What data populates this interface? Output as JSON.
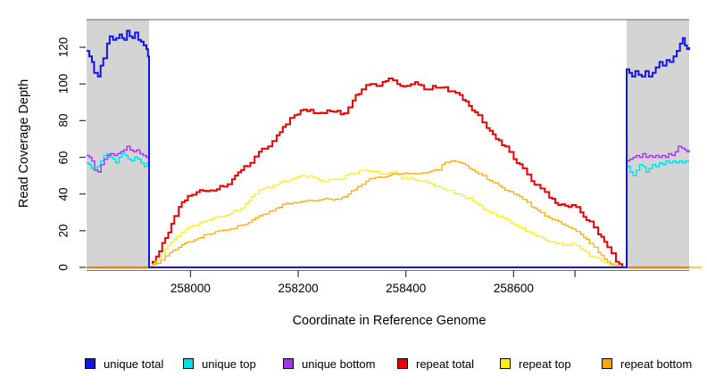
{
  "chart_data": {
    "type": "line",
    "title": "",
    "xlabel": "Coordinate in Reference Genome",
    "ylabel": "Read Coverage Depth",
    "x_range": [
      257807,
      258926
    ],
    "y_range": [
      0,
      135
    ],
    "x_ticks": [
      258000,
      258200,
      258400,
      258600
    ],
    "minor_x_ticks": [
      258714
    ],
    "y_ticks": [
      0,
      20,
      40,
      60,
      80,
      100,
      120
    ],
    "grid": false,
    "legend_position": "bottom",
    "shaded_regions": [
      {
        "start": 257807,
        "end": 257923,
        "color": "#d4d4d4"
      },
      {
        "start": 258810,
        "end": 258926,
        "color": "#d4d4d4"
      }
    ],
    "series": [
      {
        "name": "repeat total",
        "color": "#ee0000",
        "points": [
          [
            257807,
            0
          ],
          [
            257923,
            0
          ],
          [
            257936,
            6
          ],
          [
            257953,
            16
          ],
          [
            257970,
            28
          ],
          [
            257978,
            33
          ],
          [
            257995,
            39
          ],
          [
            258011,
            41
          ],
          [
            258036,
            42
          ],
          [
            258061,
            44
          ],
          [
            258077,
            48
          ],
          [
            258094,
            53
          ],
          [
            258111,
            57
          ],
          [
            258127,
            63
          ],
          [
            258144,
            66
          ],
          [
            258160,
            72
          ],
          [
            258177,
            78
          ],
          [
            258193,
            83
          ],
          [
            258210,
            86
          ],
          [
            258235,
            84
          ],
          [
            258260,
            85
          ],
          [
            258285,
            84
          ],
          [
            258301,
            91
          ],
          [
            258318,
            97
          ],
          [
            258334,
            100
          ],
          [
            258351,
            99
          ],
          [
            258368,
            103
          ],
          [
            258384,
            100
          ],
          [
            258401,
            99
          ],
          [
            258417,
            101
          ],
          [
            258434,
            97
          ],
          [
            258450,
            99
          ],
          [
            258467,
            98
          ],
          [
            258484,
            96
          ],
          [
            258500,
            94
          ],
          [
            258517,
            88
          ],
          [
            258534,
            83
          ],
          [
            258550,
            76
          ],
          [
            258567,
            70
          ],
          [
            258584,
            66
          ],
          [
            258600,
            59
          ],
          [
            258617,
            54
          ],
          [
            258633,
            47
          ],
          [
            258650,
            43
          ],
          [
            258666,
            38
          ],
          [
            258683,
            34
          ],
          [
            258708,
            34
          ],
          [
            258724,
            30
          ],
          [
            258741,
            25
          ],
          [
            258757,
            18
          ],
          [
            258774,
            11
          ],
          [
            258790,
            3
          ],
          [
            258802,
            0
          ],
          [
            258926,
            0
          ]
        ]
      },
      {
        "name": "repeat top",
        "color": "#ffee00",
        "points": [
          [
            257807,
            0
          ],
          [
            257923,
            0
          ],
          [
            257941,
            5
          ],
          [
            257958,
            12
          ],
          [
            257975,
            17
          ],
          [
            257991,
            21
          ],
          [
            258011,
            23
          ],
          [
            258036,
            26
          ],
          [
            258061,
            28
          ],
          [
            258086,
            31
          ],
          [
            258102,
            35
          ],
          [
            258119,
            40
          ],
          [
            258135,
            43
          ],
          [
            258160,
            45
          ],
          [
            258185,
            48
          ],
          [
            258210,
            50
          ],
          [
            258227,
            49
          ],
          [
            258251,
            47
          ],
          [
            258276,
            48
          ],
          [
            258301,
            51
          ],
          [
            258326,
            53
          ],
          [
            258351,
            51
          ],
          [
            258376,
            52
          ],
          [
            258392,
            48
          ],
          [
            258409,
            49
          ],
          [
            258426,
            47
          ],
          [
            258442,
            46
          ],
          [
            258459,
            44
          ],
          [
            258475,
            42
          ],
          [
            258497,
            40
          ],
          [
            258525,
            36
          ],
          [
            258550,
            31
          ],
          [
            258580,
            27
          ],
          [
            258608,
            22
          ],
          [
            258636,
            18
          ],
          [
            258666,
            14
          ],
          [
            258691,
            12
          ],
          [
            258708,
            13
          ],
          [
            258724,
            10
          ],
          [
            258741,
            6
          ],
          [
            258757,
            5
          ],
          [
            258774,
            2
          ],
          [
            258787,
            0
          ],
          [
            258926,
            0
          ]
        ]
      },
      {
        "name": "repeat bottom",
        "color": "#ffa500",
        "points": [
          [
            257807,
            0
          ],
          [
            257923,
            0
          ],
          [
            257945,
            4
          ],
          [
            257961,
            8
          ],
          [
            257978,
            11
          ],
          [
            257995,
            14
          ],
          [
            258014,
            16
          ],
          [
            258031,
            18
          ],
          [
            258053,
            20
          ],
          [
            258074,
            21
          ],
          [
            258094,
            23
          ],
          [
            258114,
            26
          ],
          [
            258135,
            29
          ],
          [
            258152,
            31
          ],
          [
            258177,
            35
          ],
          [
            258210,
            36
          ],
          [
            258243,
            37
          ],
          [
            258276,
            37
          ],
          [
            258293,
            40
          ],
          [
            258310,
            44
          ],
          [
            258326,
            47
          ],
          [
            258343,
            49
          ],
          [
            258368,
            50
          ],
          [
            258392,
            51
          ],
          [
            258417,
            51
          ],
          [
            258442,
            52
          ],
          [
            258459,
            53
          ],
          [
            258467,
            56
          ],
          [
            258484,
            58
          ],
          [
            258500,
            57
          ],
          [
            258517,
            54
          ],
          [
            258534,
            51
          ],
          [
            258550,
            48
          ],
          [
            258567,
            46
          ],
          [
            258584,
            42
          ],
          [
            258600,
            40
          ],
          [
            258617,
            37
          ],
          [
            258633,
            33
          ],
          [
            258650,
            30
          ],
          [
            258666,
            27
          ],
          [
            258683,
            25
          ],
          [
            258708,
            21
          ],
          [
            258724,
            18
          ],
          [
            258741,
            13
          ],
          [
            258757,
            8
          ],
          [
            258774,
            3
          ],
          [
            258793,
            0
          ],
          [
            258950,
            0
          ]
        ]
      },
      {
        "name": "unique top",
        "color": "#00dfe8",
        "points": [
          [
            257807,
            57
          ],
          [
            257812,
            56
          ],
          [
            257816,
            54
          ],
          [
            257821,
            53
          ],
          [
            257827,
            55
          ],
          [
            257833,
            58
          ],
          [
            257839,
            61
          ],
          [
            257845,
            62
          ],
          [
            257850,
            60
          ],
          [
            257856,
            59
          ],
          [
            257861,
            57
          ],
          [
            257867,
            60
          ],
          [
            257873,
            62
          ],
          [
            257879,
            61
          ],
          [
            257884,
            59
          ],
          [
            257890,
            58
          ],
          [
            257896,
            60
          ],
          [
            257902,
            59
          ],
          [
            257908,
            57
          ],
          [
            257914,
            55
          ],
          [
            257919,
            57
          ],
          [
            257923,
            57
          ],
          [
            257923,
            0
          ],
          [
            258810,
            0
          ],
          [
            258810,
            55
          ],
          [
            258817,
            52
          ],
          [
            258822,
            50
          ],
          [
            258828,
            53
          ],
          [
            258834,
            56
          ],
          [
            258840,
            55
          ],
          [
            258846,
            52
          ],
          [
            258852,
            54
          ],
          [
            258858,
            56
          ],
          [
            258864,
            55
          ],
          [
            258871,
            57
          ],
          [
            258877,
            56
          ],
          [
            258883,
            58
          ],
          [
            258889,
            57
          ],
          [
            258896,
            58
          ],
          [
            258902,
            57
          ],
          [
            258908,
            58
          ],
          [
            258914,
            57
          ],
          [
            258920,
            58
          ],
          [
            258926,
            58
          ]
        ]
      },
      {
        "name": "unique bottom",
        "color": "#a035ec",
        "points": [
          [
            257807,
            61
          ],
          [
            257812,
            60
          ],
          [
            257817,
            58
          ],
          [
            257822,
            53
          ],
          [
            257828,
            52
          ],
          [
            257834,
            56
          ],
          [
            257840,
            59
          ],
          [
            257846,
            61
          ],
          [
            257852,
            62
          ],
          [
            257858,
            61
          ],
          [
            257864,
            62
          ],
          [
            257870,
            63
          ],
          [
            257876,
            64
          ],
          [
            257882,
            66
          ],
          [
            257888,
            64
          ],
          [
            257894,
            63
          ],
          [
            257900,
            64
          ],
          [
            257906,
            62
          ],
          [
            257912,
            61
          ],
          [
            257918,
            60
          ],
          [
            257923,
            60
          ],
          [
            257923,
            0
          ],
          [
            258810,
            0
          ],
          [
            258810,
            58
          ],
          [
            258816,
            59
          ],
          [
            258822,
            60
          ],
          [
            258828,
            61
          ],
          [
            258834,
            60
          ],
          [
            258840,
            62
          ],
          [
            258846,
            60
          ],
          [
            258852,
            61
          ],
          [
            258858,
            60
          ],
          [
            258864,
            61
          ],
          [
            258870,
            60
          ],
          [
            258876,
            61
          ],
          [
            258882,
            60
          ],
          [
            258888,
            62
          ],
          [
            258894,
            61
          ],
          [
            258900,
            63
          ],
          [
            258906,
            66
          ],
          [
            258912,
            65
          ],
          [
            258918,
            64
          ],
          [
            258922,
            63
          ],
          [
            258926,
            64
          ]
        ]
      },
      {
        "name": "unique total",
        "color": "#1414e6",
        "points": [
          [
            257807,
            118
          ],
          [
            257812,
            115
          ],
          [
            257817,
            112
          ],
          [
            257821,
            106
          ],
          [
            257828,
            104
          ],
          [
            257833,
            110
          ],
          [
            257838,
            114
          ],
          [
            257845,
            122
          ],
          [
            257850,
            126
          ],
          [
            257856,
            124
          ],
          [
            257862,
            125
          ],
          [
            257868,
            127
          ],
          [
            257873,
            125
          ],
          [
            257877,
            124
          ],
          [
            257882,
            129
          ],
          [
            257887,
            126
          ],
          [
            257892,
            125
          ],
          [
            257897,
            128
          ],
          [
            257903,
            124
          ],
          [
            257908,
            123
          ],
          [
            257913,
            121
          ],
          [
            257918,
            119
          ],
          [
            257921,
            115
          ],
          [
            257923,
            110
          ],
          [
            257923,
            0
          ],
          [
            258810,
            0
          ],
          [
            258810,
            108
          ],
          [
            258815,
            106
          ],
          [
            258820,
            104
          ],
          [
            258826,
            107
          ],
          [
            258832,
            105
          ],
          [
            258838,
            104
          ],
          [
            258845,
            107
          ],
          [
            258851,
            104
          ],
          [
            258858,
            106
          ],
          [
            258864,
            109
          ],
          [
            258871,
            112
          ],
          [
            258877,
            110
          ],
          [
            258884,
            113
          ],
          [
            258890,
            112
          ],
          [
            258897,
            115
          ],
          [
            258903,
            118
          ],
          [
            258909,
            122
          ],
          [
            258914,
            125
          ],
          [
            258918,
            121
          ],
          [
            258922,
            119
          ],
          [
            258926,
            120
          ]
        ]
      }
    ],
    "legend": [
      {
        "name": "unique total",
        "color": "#1414e6"
      },
      {
        "name": "unique top",
        "color": "#00dfe8"
      },
      {
        "name": "unique bottom",
        "color": "#a035ec"
      },
      {
        "name": "repeat total",
        "color": "#ee0000"
      },
      {
        "name": "repeat top",
        "color": "#ffee00"
      },
      {
        "name": "repeat bottom",
        "color": "#ffa500"
      }
    ]
  }
}
